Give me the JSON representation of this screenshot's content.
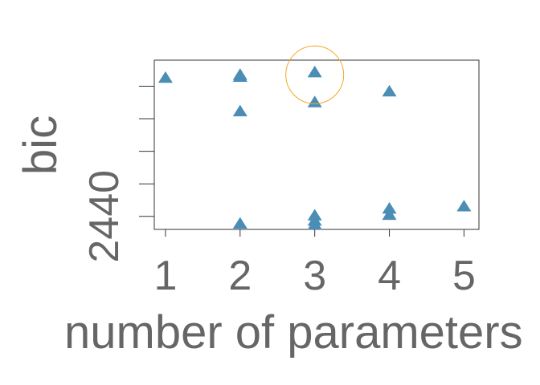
{
  "chart_data": {
    "type": "scatter",
    "title": "",
    "xlabel": "number of parameters",
    "ylabel": "bic",
    "xlim": [
      0.85,
      5.2
    ],
    "ylim": [
      2436.0,
      2488.0
    ],
    "x_ticks": [
      1,
      2,
      3,
      4,
      5
    ],
    "y_ticks": [
      2440,
      2450,
      2460,
      2470,
      2480
    ],
    "y_tick_labels_shown": [
      "2440"
    ],
    "grid": false,
    "marker": "triangle",
    "marker_color": "#4a8db5",
    "highlight_color": "#f5a623",
    "series": [
      {
        "points": [
          {
            "x": 1,
            "y": 2482.5
          },
          {
            "x": 2,
            "y": 2483.4
          },
          {
            "x": 2,
            "y": 2482.8
          },
          {
            "x": 2,
            "y": 2472.2
          },
          {
            "x": 2,
            "y": 2437.7
          },
          {
            "x": 3,
            "y": 2484.2
          },
          {
            "x": 3,
            "y": 2475.0
          },
          {
            "x": 3,
            "y": 2440.2
          },
          {
            "x": 3,
            "y": 2438.6
          },
          {
            "x": 3,
            "y": 2437.4
          },
          {
            "x": 4,
            "y": 2478.3
          },
          {
            "x": 4,
            "y": 2442.3
          },
          {
            "x": 4,
            "y": 2440.4
          },
          {
            "x": 5,
            "y": 2443.0
          }
        ]
      }
    ],
    "highlight": {
      "x": 3,
      "y": 2483.5
    }
  }
}
